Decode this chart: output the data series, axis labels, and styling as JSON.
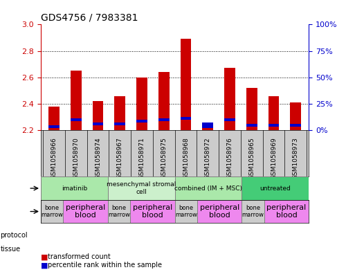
{
  "title": "GDS4756 / 7983381",
  "samples": [
    "GSM1058966",
    "GSM1058970",
    "GSM1058974",
    "GSM1058967",
    "GSM1058971",
    "GSM1058975",
    "GSM1058968",
    "GSM1058972",
    "GSM1058976",
    "GSM1058965",
    "GSM1058969",
    "GSM1058973"
  ],
  "red_values": [
    2.38,
    2.65,
    2.42,
    2.46,
    2.6,
    2.64,
    2.89,
    2.22,
    2.67,
    2.52,
    2.46,
    2.41
  ],
  "blue_bot": [
    2.22,
    2.27,
    2.24,
    2.24,
    2.26,
    2.27,
    2.28,
    2.22,
    2.27,
    2.23,
    2.23,
    2.23
  ],
  "blue_top": [
    2.24,
    2.29,
    2.26,
    2.26,
    2.28,
    2.29,
    2.3,
    2.26,
    2.29,
    2.25,
    2.25,
    2.25
  ],
  "y_min": 2.2,
  "y_max": 3.0,
  "y_ticks_left": [
    2.2,
    2.4,
    2.6,
    2.8,
    3.0
  ],
  "y_ticks_right": [
    0,
    25,
    50,
    75,
    100
  ],
  "protocols": [
    {
      "label": "imatinib",
      "start": 0,
      "end": 3,
      "color": "#aae8aa"
    },
    {
      "label": "mesenchymal stromal\ncell",
      "start": 3,
      "end": 6,
      "color": "#ccf0cc"
    },
    {
      "label": "combined (IM + MSC)",
      "start": 6,
      "end": 9,
      "color": "#aae8aa"
    },
    {
      "label": "untreated",
      "start": 9,
      "end": 12,
      "color": "#44cc77"
    }
  ],
  "tissues": [
    {
      "label": "bone\nmarrow",
      "start": 0,
      "end": 1,
      "color": "#cccccc"
    },
    {
      "label": "peripheral\nblood",
      "start": 1,
      "end": 3,
      "color": "#ee88ee"
    },
    {
      "label": "bone\nmarrow",
      "start": 3,
      "end": 4,
      "color": "#cccccc"
    },
    {
      "label": "peripheral\nblood",
      "start": 4,
      "end": 6,
      "color": "#ee88ee"
    },
    {
      "label": "bone\nmarrow",
      "start": 6,
      "end": 7,
      "color": "#cccccc"
    },
    {
      "label": "peripheral\nblood",
      "start": 7,
      "end": 9,
      "color": "#ee88ee"
    },
    {
      "label": "bone\nmarrow",
      "start": 9,
      "end": 10,
      "color": "#cccccc"
    },
    {
      "label": "peripheral\nblood",
      "start": 10,
      "end": 12,
      "color": "#ee88ee"
    }
  ],
  "bar_width": 0.5,
  "bar_color_red": "#cc0000",
  "bar_color_blue": "#0000cc",
  "left_axis_color": "#cc0000",
  "right_axis_color": "#0000cc",
  "sample_bg_color": "#cccccc"
}
